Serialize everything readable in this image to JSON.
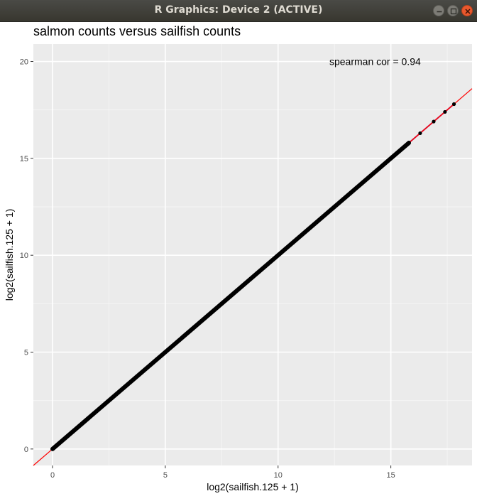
{
  "window": {
    "title": "R Graphics: Device 2 (ACTIVE)",
    "minimize_icon": "minimize-icon",
    "maximize_icon": "maximize-icon",
    "close_icon": "close-icon"
  },
  "chart_data": {
    "type": "scatter",
    "title": "salmon counts versus sailfish counts",
    "xlabel": "log2(sailfish.125 + 1)",
    "ylabel": "log2(sailfish.125 + 1)",
    "xlim": [
      -0.85,
      18.6
    ],
    "ylim": [
      -0.85,
      20.9
    ],
    "xticks": [
      0,
      5,
      10,
      15
    ],
    "yticks": [
      0,
      5,
      10,
      15,
      20
    ],
    "xtick_labels": [
      "0",
      "5",
      "10",
      "15"
    ],
    "ytick_labels": [
      "0",
      "5",
      "10",
      "15",
      "20"
    ],
    "grid": true,
    "background": "#ebebeb",
    "annotation": "spearman cor = 0.94",
    "reference_line": {
      "slope": 1,
      "intercept": 0,
      "color": "#ff0000"
    },
    "fit_line_color": "#b03070",
    "point_color": "#000000",
    "dense_range": [
      0,
      15.8
    ],
    "points": [
      {
        "x": 0,
        "y": 0
      },
      {
        "x": 14.6,
        "y": 14.6
      },
      {
        "x": 14.8,
        "y": 14.8
      },
      {
        "x": 15.0,
        "y": 15.0
      },
      {
        "x": 15.2,
        "y": 15.2
      },
      {
        "x": 15.4,
        "y": 15.4
      },
      {
        "x": 15.6,
        "y": 15.6
      },
      {
        "x": 15.8,
        "y": 15.8
      },
      {
        "x": 16.3,
        "y": 16.3
      },
      {
        "x": 16.9,
        "y": 16.9
      },
      {
        "x": 17.4,
        "y": 17.4
      },
      {
        "x": 17.8,
        "y": 17.8
      }
    ]
  }
}
